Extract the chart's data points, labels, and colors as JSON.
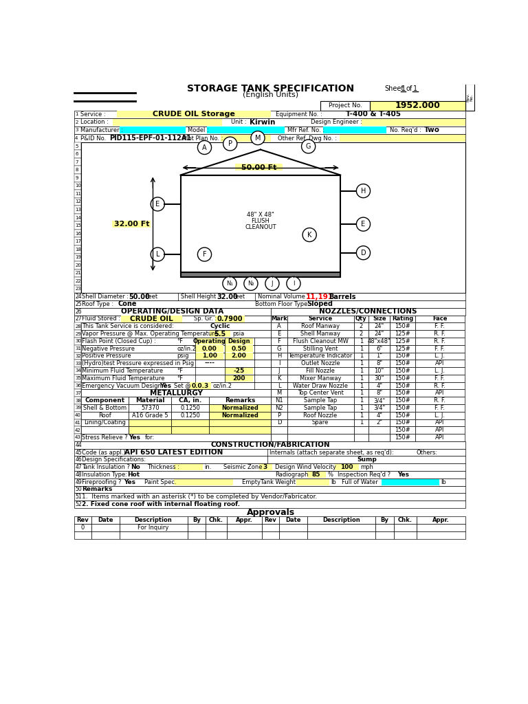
{
  "title": "STORAGE TANK SPECIFICATION",
  "subtitle": "(English Units)",
  "sheet": "Sheet  1  of  1",
  "project_no": "1952.000",
  "service": "CRUDE OIL Storage",
  "equipment_no": "T-400 & T-405",
  "unit": "Kirwin",
  "no_reqd": "Two",
  "pid_no": "PID115-EPF-01-112A1",
  "shell_diameter": "50.00",
  "shell_height": "32.00",
  "nominal_volume": "11,191",
  "roof_type": "Cone",
  "bottom_floor_type": "Sloped",
  "fluid_stored": "CRUDE OIL",
  "sp_gr": "0.7900",
  "nozzles": [
    [
      "A",
      "Roof Manway",
      "2",
      "24\"",
      "150#",
      "F. F."
    ],
    [
      "E",
      "Shell Manway",
      "2",
      "24\"",
      "125#",
      "R. F."
    ],
    [
      "F",
      "Flush Cleanout MW",
      "1",
      "48\"x48\"",
      "125#",
      "R. F."
    ],
    [
      "G",
      "Stilling Vent",
      "1",
      "6\"",
      "125#",
      "F. F."
    ],
    [
      "H",
      "Temperature Indicator",
      "1",
      "1\"",
      "150#",
      "L. J."
    ],
    [
      "I",
      "Outlet Nozzle",
      "1",
      "8\"",
      "150#",
      "API"
    ],
    [
      "J",
      "Fill Nozzle",
      "1",
      "10\"",
      "150#",
      "L. J."
    ],
    [
      "K",
      "Mixer Manway",
      "1",
      "30\"",
      "150#",
      "F. F."
    ],
    [
      "L",
      "Water Draw Nozzle",
      "1",
      "4\"",
      "150#",
      "R. F."
    ],
    [
      "M",
      "Top Center Vent",
      "1",
      "8\"",
      "150#",
      "API"
    ],
    [
      "N1",
      "Sample Tap",
      "1",
      "3/4\"",
      "150#",
      "R. F."
    ],
    [
      "N2",
      "Sample Tap",
      "1",
      "3/4\"",
      "150#",
      "F. F."
    ],
    [
      "P",
      "Roof Nozzle",
      "1",
      "4\"",
      "150#",
      "L. J."
    ],
    [
      "D",
      "Spare",
      "1",
      "2\"",
      "150#",
      "API"
    ],
    [
      "",
      "",
      "",
      "",
      "150#",
      "API"
    ],
    [
      "",
      "",
      "",
      "",
      "150#",
      "API"
    ]
  ],
  "remarks": [
    "1.  Items marked with an asterisk (*) to be completed by Vendor/Fabricator.",
    "2. Fixed cone roof with internal floating roof."
  ],
  "bg_yellow": "#FFFF99",
  "bg_cyan": "#00FFFF",
  "color_red": "#FF0000",
  "noz_col_starts": [
    385,
    415,
    540,
    568,
    608,
    655,
    748
  ],
  "noz_headers": [
    "Mark",
    "Service",
    "Qty",
    "Size",
    "Rating",
    "Face"
  ]
}
